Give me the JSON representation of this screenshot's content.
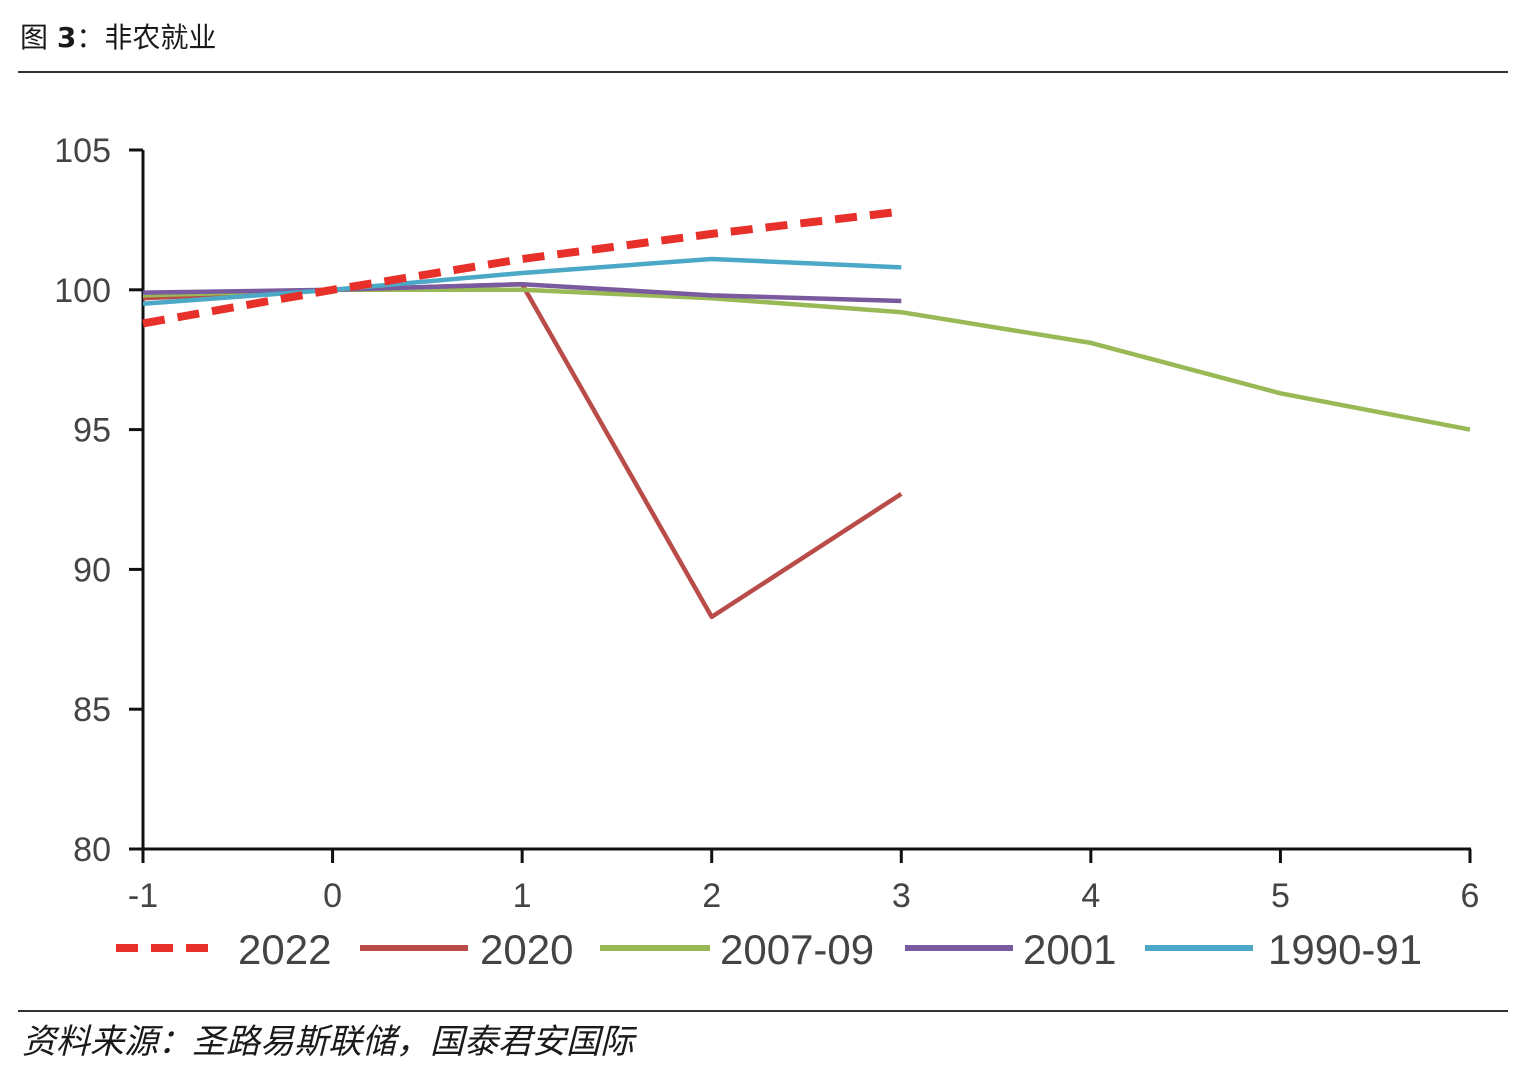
{
  "figure": {
    "title_prefix": "图",
    "title_number": "3",
    "title_sep": "：",
    "title_text": "非农就业",
    "source": "资料来源：圣路易斯联储，国泰君安国际"
  },
  "chart_data": {
    "type": "line",
    "title": "",
    "xlabel": "",
    "ylabel": "",
    "x": [
      -1,
      0,
      1,
      2,
      3,
      4,
      5,
      6
    ],
    "xlim": [
      -1,
      6
    ],
    "ylim": [
      80,
      105
    ],
    "yticks": [
      80,
      85,
      90,
      95,
      100,
      105
    ],
    "grid": false,
    "legend_position": "bottom",
    "series": [
      {
        "name": "2022",
        "color": "#e8302a",
        "dashed": true,
        "values": [
          98.8,
          100.0,
          101.1,
          102.0,
          102.8,
          null,
          null,
          null
        ]
      },
      {
        "name": "2020",
        "color": "#b94c48",
        "dashed": false,
        "values": [
          99.7,
          100.0,
          100.2,
          88.3,
          92.7,
          null,
          null,
          null
        ]
      },
      {
        "name": "2007-09",
        "color": "#99b956",
        "dashed": false,
        "values": [
          99.8,
          100.0,
          100.0,
          99.7,
          99.2,
          98.1,
          96.3,
          95.0
        ]
      },
      {
        "name": "2001",
        "color": "#7a5a9e",
        "dashed": false,
        "values": [
          99.9,
          100.0,
          100.2,
          99.8,
          99.6,
          null,
          null,
          null
        ]
      },
      {
        "name": "1990-91",
        "color": "#4ba8c6",
        "dashed": false,
        "values": [
          99.5,
          100.0,
          100.6,
          101.1,
          100.8,
          null,
          null,
          null
        ]
      }
    ]
  }
}
